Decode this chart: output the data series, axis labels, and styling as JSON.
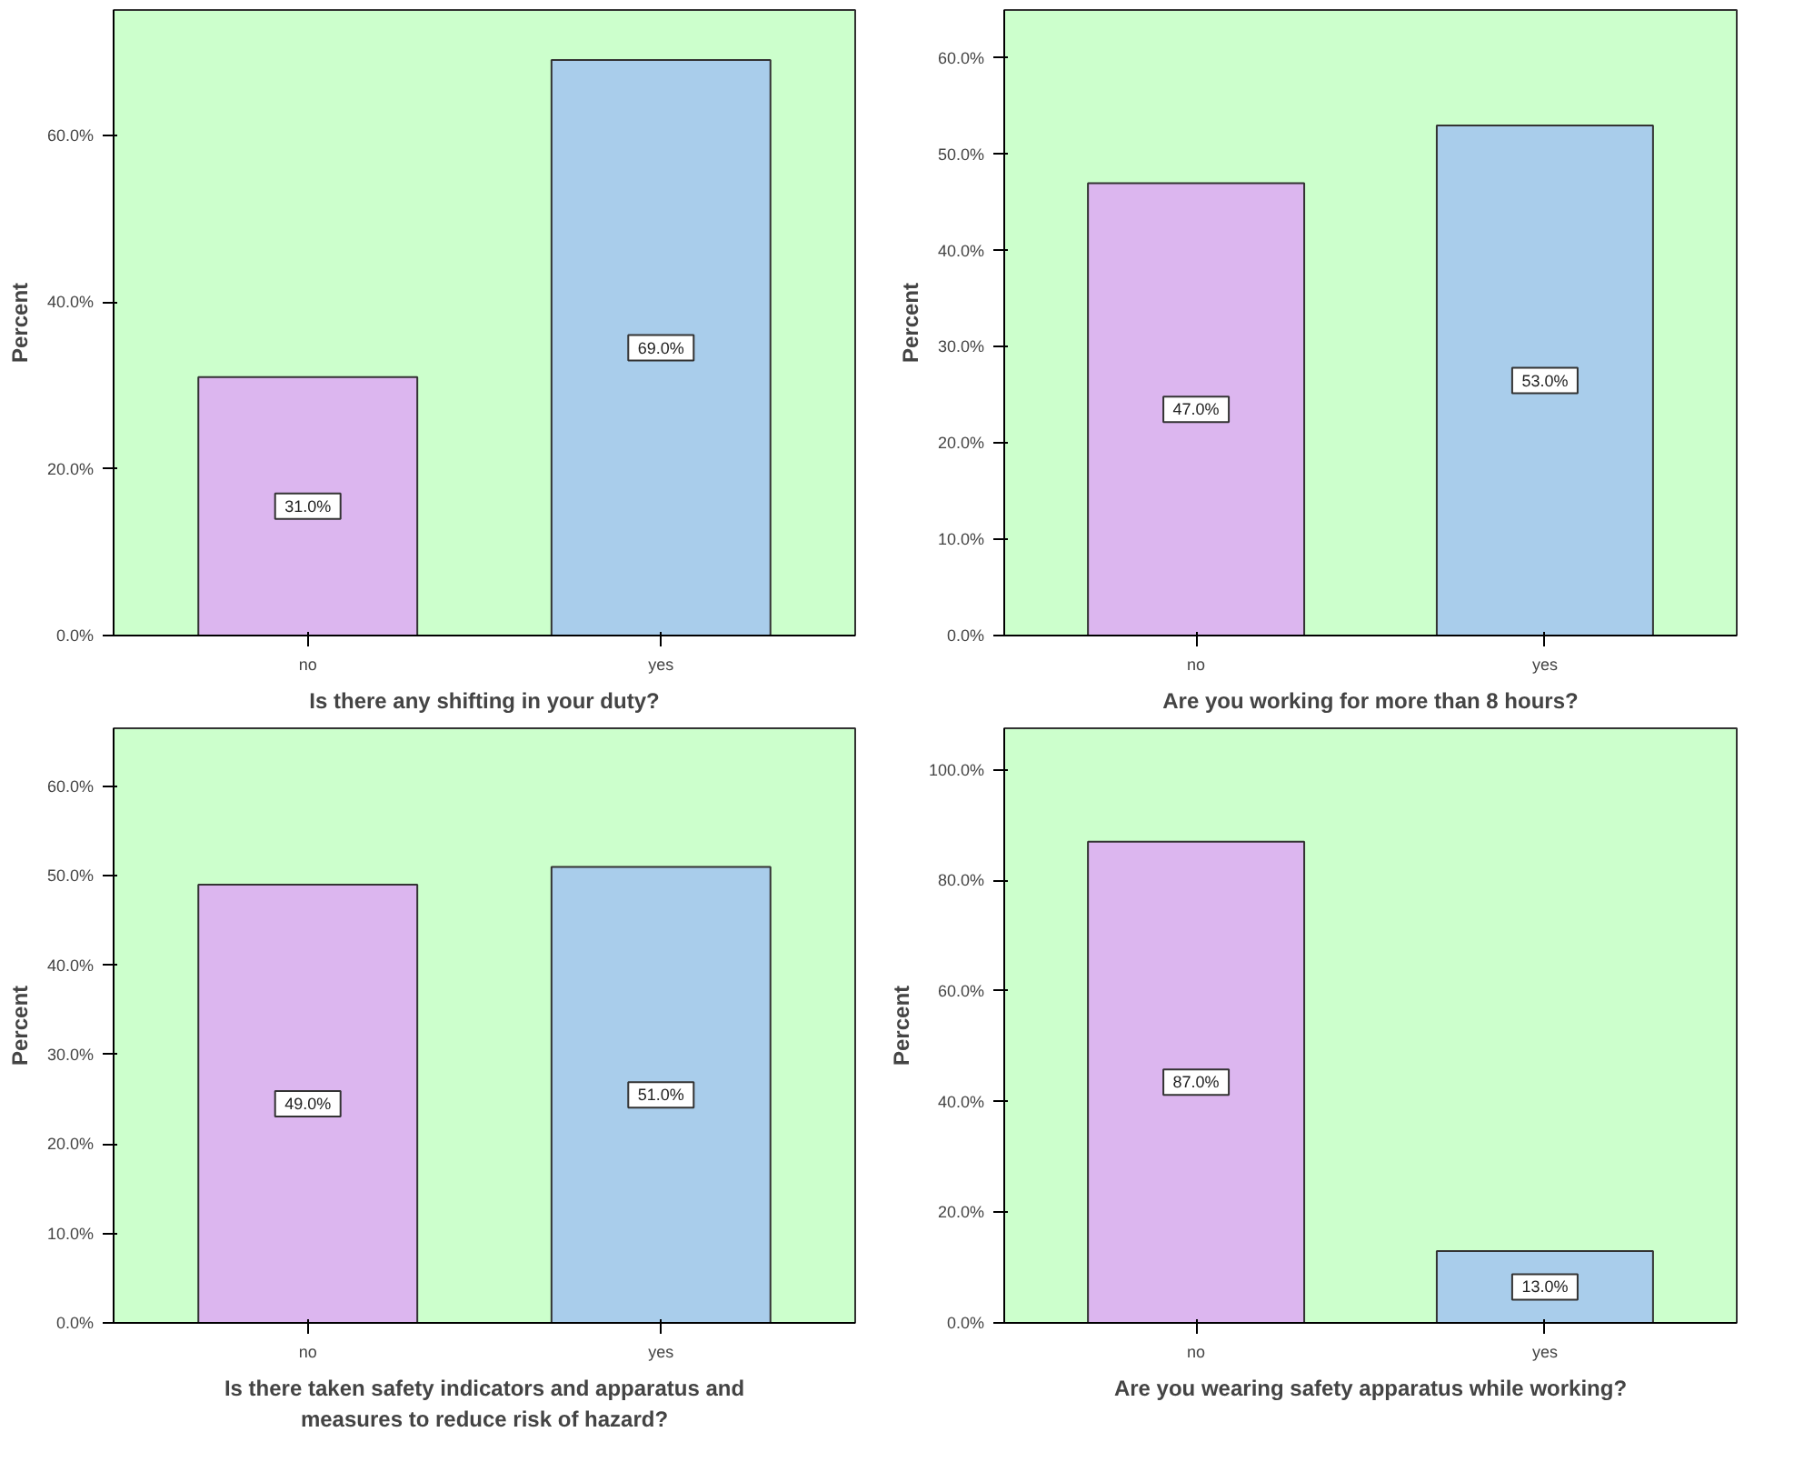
{
  "chart_data": [
    {
      "type": "bar",
      "xlabel": "Is there any shifting in your duty?",
      "ylabel": "Percent",
      "categories": [
        "no",
        "yes"
      ],
      "values": [
        31.0,
        69.0
      ],
      "colors": [
        "#dcb6ef",
        "#a9cdeb"
      ],
      "value_labels": [
        "31.0%",
        "69.0%"
      ],
      "ylim": [
        0,
        75
      ],
      "yticks": [
        {
          "value": 0,
          "label": "0.0%"
        },
        {
          "value": 20,
          "label": "20.0%"
        },
        {
          "value": 40,
          "label": "40.0%"
        },
        {
          "value": 60,
          "label": "60.0%"
        }
      ],
      "grid": false
    },
    {
      "type": "bar",
      "xlabel": "Are you working for more than 8 hours?",
      "ylabel": "Percent",
      "categories": [
        "no",
        "yes"
      ],
      "values": [
        47.0,
        53.0
      ],
      "colors": [
        "#dcb6ef",
        "#a9cdeb"
      ],
      "value_labels": [
        "47.0%",
        "53.0%"
      ],
      "ylim": [
        0,
        65
      ],
      "yticks": [
        {
          "value": 0,
          "label": "0.0%"
        },
        {
          "value": 10,
          "label": "10.0%"
        },
        {
          "value": 20,
          "label": "20.0%"
        },
        {
          "value": 30,
          "label": "30.0%"
        },
        {
          "value": 40,
          "label": "40.0%"
        },
        {
          "value": 50,
          "label": "50.0%"
        },
        {
          "value": 60,
          "label": "60.0%"
        }
      ],
      "grid": false
    },
    {
      "type": "bar",
      "xlabel": "Is there taken safety indicators and apparatus and\nmeasures to reduce risk of hazard?",
      "ylabel": "Percent",
      "categories": [
        "no",
        "yes"
      ],
      "values": [
        49.0,
        51.0
      ],
      "colors": [
        "#dcb6ef",
        "#a9cdeb"
      ],
      "value_labels": [
        "49.0%",
        "51.0%"
      ],
      "ylim": [
        0,
        66.5
      ],
      "yticks": [
        {
          "value": 0,
          "label": "0.0%"
        },
        {
          "value": 10,
          "label": "10.0%"
        },
        {
          "value": 20,
          "label": "20.0%"
        },
        {
          "value": 30,
          "label": "30.0%"
        },
        {
          "value": 40,
          "label": "40.0%"
        },
        {
          "value": 50,
          "label": "50.0%"
        },
        {
          "value": 60,
          "label": "60.0%"
        }
      ],
      "grid": false
    },
    {
      "type": "bar",
      "xlabel": "Are you wearing safety apparatus while working?",
      "ylabel": "Percent",
      "categories": [
        "no",
        "yes"
      ],
      "values": [
        87.0,
        13.0
      ],
      "colors": [
        "#dcb6ef",
        "#a9cdeb"
      ],
      "value_labels": [
        "87.0%",
        "13.0%"
      ],
      "ylim": [
        0,
        107.5
      ],
      "yticks": [
        {
          "value": 0,
          "label": "0.0%"
        },
        {
          "value": 20,
          "label": "20.0%"
        },
        {
          "value": 40,
          "label": "40.0%"
        },
        {
          "value": 60,
          "label": "60.0%"
        },
        {
          "value": 80,
          "label": "80.0%"
        },
        {
          "value": 100,
          "label": "100.0%"
        }
      ],
      "grid": false
    }
  ]
}
